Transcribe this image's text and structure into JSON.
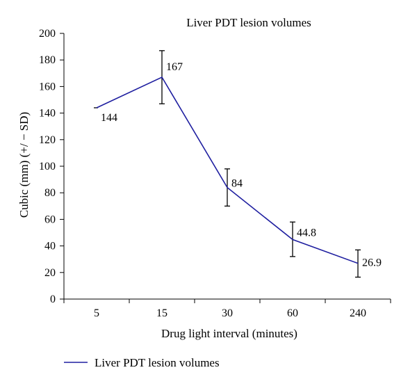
{
  "chart_data": {
    "type": "line",
    "title": "Liver PDT lesion volumes",
    "xlabel": "Drug light interval (minutes)",
    "ylabel": "Cubic (mm) (+/ − SD)",
    "categories": [
      "5",
      "15",
      "30",
      "60",
      "240"
    ],
    "ylim": [
      0,
      200
    ],
    "yticks": [
      "0",
      "20",
      "40",
      "60",
      "80",
      "100",
      "120",
      "140",
      "160",
      "180",
      "200"
    ],
    "grid": false,
    "legend_position": "bottom-left",
    "series": [
      {
        "name": "Liver PDT lesion volumes",
        "color": "#1f1fa0",
        "values": [
          144,
          167,
          84,
          44.8,
          26.9
        ],
        "labels": [
          "144",
          "167",
          "84",
          "44.8",
          "26.9"
        ],
        "error_low": [
          null,
          147,
          70,
          32,
          16.5
        ],
        "error_high": [
          null,
          187,
          98,
          58,
          37
        ]
      }
    ]
  }
}
